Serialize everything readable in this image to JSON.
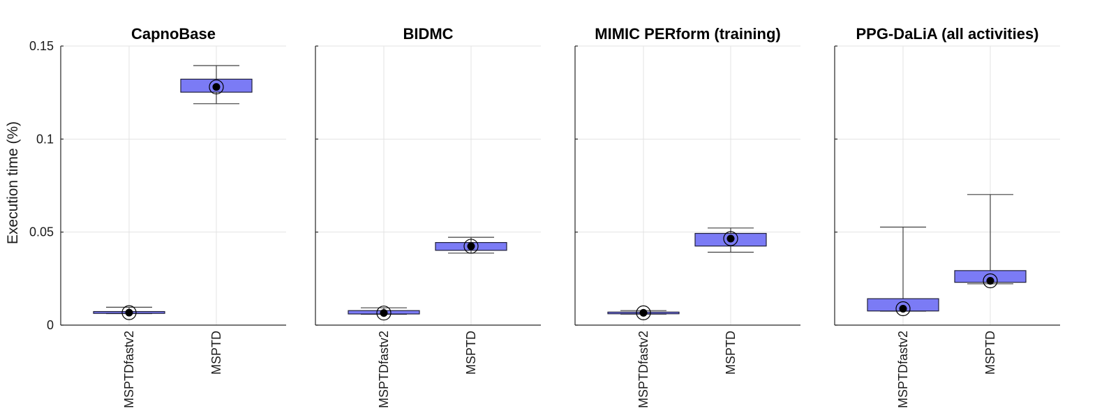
{
  "chart_data": {
    "type": "box",
    "ylabel": "Execution time (%)",
    "ylim": [
      0,
      0.15
    ],
    "yticks": [
      0,
      0.05,
      0.1,
      0.15
    ],
    "ytick_labels": [
      "0",
      "0.05",
      "0.1",
      "0.15"
    ],
    "grid": true,
    "colors": {
      "box_fill": "#7b7bf5",
      "box_edge": "#1f1f3a",
      "median_marker": "#000000",
      "grid": "#e3e3e3"
    },
    "panels": [
      {
        "title": "CapnoBase",
        "categories": [
          "MSPTDfastv2",
          "MSPTD"
        ],
        "boxes": [
          {
            "whisker_low": 0.0062,
            "q1": 0.0063,
            "median": 0.0067,
            "q3": 0.0073,
            "whisker_high": 0.0096
          },
          {
            "whisker_low": 0.119,
            "q1": 0.1252,
            "median": 0.128,
            "q3": 0.1322,
            "whisker_high": 0.1395
          }
        ]
      },
      {
        "title": "BIDMC",
        "categories": [
          "MSPTDfastv2",
          "MSPTD"
        ],
        "boxes": [
          {
            "whisker_low": 0.0058,
            "q1": 0.006,
            "median": 0.0065,
            "q3": 0.0078,
            "whisker_high": 0.0093
          },
          {
            "whisker_low": 0.0387,
            "q1": 0.0402,
            "median": 0.0424,
            "q3": 0.0444,
            "whisker_high": 0.0472
          }
        ]
      },
      {
        "title": "MIMIC PERform (training)",
        "categories": [
          "MSPTDfastv2",
          "MSPTD"
        ],
        "boxes": [
          {
            "whisker_low": 0.0059,
            "q1": 0.0061,
            "median": 0.0066,
            "q3": 0.007,
            "whisker_high": 0.0078
          },
          {
            "whisker_low": 0.0392,
            "q1": 0.0425,
            "median": 0.0465,
            "q3": 0.0493,
            "whisker_high": 0.0522
          }
        ]
      },
      {
        "title": "PPG-DaLiA (all activities)",
        "categories": [
          "MSPTDfastv2",
          "MSPTD"
        ],
        "boxes": [
          {
            "whisker_low": 0.0075,
            "q1": 0.0076,
            "median": 0.0088,
            "q3": 0.0142,
            "whisker_high": 0.0527
          },
          {
            "whisker_low": 0.0222,
            "q1": 0.023,
            "median": 0.0238,
            "q3": 0.0293,
            "whisker_high": 0.0702
          }
        ]
      }
    ]
  }
}
